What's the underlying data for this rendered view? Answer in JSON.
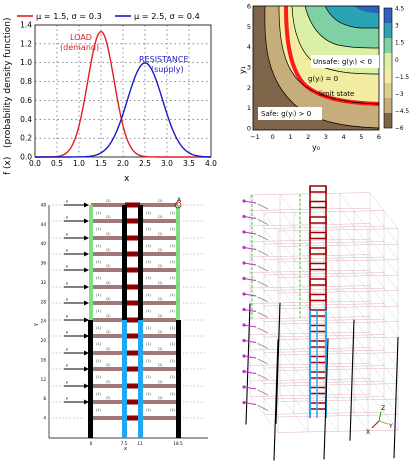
{
  "pdf_chart": {
    "xlabel": "x",
    "ylabel": "f (x)",
    "ylabel_side": "(probability density function)",
    "legend": [
      {
        "label": "μ =  1.5,  σ =  0.3",
        "color": "#e02020"
      },
      {
        "label": "μ =  2.5,  σ =  0.4",
        "color": "#1a1acc"
      }
    ],
    "annotations": {
      "load_1": "LOAD",
      "load_2": "(demand)",
      "resistance_1": "RESISTANCE",
      "resistance_2": "(supply)"
    },
    "x_ticks": [
      "0.0",
      "0.5",
      "1.0",
      "1.5",
      "2.0",
      "2.5",
      "3.0",
      "3.5",
      "4.0"
    ],
    "y_ticks": [
      "0.0",
      "0.2",
      "0.4",
      "0.6",
      "0.8",
      "1.0",
      "1.2",
      "1.4"
    ]
  },
  "chart_data": {
    "type": "line",
    "xlabel": "x",
    "ylabel": "f (x)",
    "xlim": [
      0,
      4
    ],
    "ylim": [
      0,
      1.4
    ],
    "grid": true,
    "legend_position": "top",
    "series": [
      {
        "name": "μ =  1.5,  σ =  0.3",
        "mu": 1.5,
        "sigma": 0.3,
        "color": "#e02020"
      },
      {
        "name": "μ =  2.5,  σ =  0.4",
        "mu": 2.5,
        "sigma": 0.4,
        "color": "#1a1acc"
      }
    ]
  },
  "contour": {
    "xlabel": "y₀",
    "ylabel": "y₁",
    "unsafe": "Unsafe: g(yᵢ) < 0",
    "safe": "Safe: g(yᵢ) > 0",
    "gzero": "g(yᵢ) = 0",
    "limit": "limit state",
    "x_ticks": [
      "−1",
      "0",
      "1",
      "2",
      "3",
      "4",
      "5",
      "6"
    ],
    "y_ticks": [
      "0",
      "1",
      "2",
      "3",
      "4",
      "5",
      "6"
    ],
    "colorbar_ticks": [
      "4.5",
      "3",
      "1.5",
      "0",
      "−1.5",
      "−3",
      "−4.5",
      "−6"
    ]
  },
  "frame2d": {
    "xlabel": "x",
    "ylabel": "y",
    "node_label": "A",
    "x_ticks": [
      "0",
      "7.5",
      "11",
      "18.5"
    ],
    "y_ticks": [
      "48",
      "44",
      "40",
      "36",
      "32",
      "28",
      "24",
      "20",
      "16",
      "12",
      "8",
      "4"
    ],
    "load_label": "P",
    "member_label": "(1)",
    "beam_label": "(2)"
  },
  "frame3d": {
    "axis_x": "X",
    "axis_y": "Y",
    "axis_z": "Z"
  }
}
